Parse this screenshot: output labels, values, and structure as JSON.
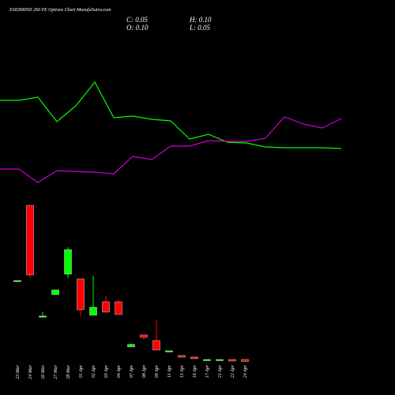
{
  "chart_data": {
    "type": "candlestick",
    "title": "ESIDMIND 260 PE Options Chart MunafaSutra.com",
    "info": {
      "close": "C: 0.05",
      "high": "H: 0.10",
      "open": "O: 0.10",
      "low": "L: 0.05"
    },
    "categories": [
      "23 Mar",
      "24 Mar",
      "26 Mar",
      "27 Mar",
      "28 Mar",
      "01 Apr",
      "02 Apr",
      "03 Apr",
      "04 Apr",
      "07 Apr",
      "08 Apr",
      "09 Apr",
      "11 Apr",
      "15 Apr",
      "16 Apr",
      "17 Apr",
      "21 Apr",
      "22 Apr",
      "24 Apr"
    ],
    "open": [
      2.1,
      4.0,
      1.2,
      1.74,
      2.26,
      2.14,
      1.22,
      1.56,
      1.56,
      0.42,
      0.72,
      0.58,
      0.32,
      0.2,
      0.16,
      0.1,
      0.1,
      0.1,
      0.1
    ],
    "high": [
      2.1,
      4.0,
      1.3,
      1.86,
      2.94,
      2.14,
      2.22,
      1.72,
      1.6,
      0.5,
      0.72,
      1.1,
      0.32,
      0.2,
      0.16,
      0.1,
      0.1,
      0.1,
      0.1
    ],
    "low": [
      2.1,
      2.16,
      1.18,
      1.74,
      2.16,
      1.18,
      1.22,
      1.3,
      1.24,
      0.42,
      0.6,
      0.34,
      0.32,
      0.16,
      0.12,
      0.1,
      0.1,
      0.06,
      0.05
    ],
    "close": [
      2.1,
      2.24,
      1.2,
      1.86,
      2.88,
      1.36,
      1.42,
      1.3,
      1.24,
      0.48,
      0.66,
      0.34,
      0.32,
      0.16,
      0.12,
      0.1,
      0.1,
      0.06,
      0.05
    ],
    "up_color": "#00ff00",
    "down_color": "#ff0000",
    "ylim": [
      0,
      4.4
    ],
    "series": [
      {
        "name": "green-line",
        "color": "#00ff00",
        "axis": "y2",
        "values": [
          2.46,
          2.46,
          2.54,
          1.92,
          2.32,
          2.92,
          2.02,
          2.06,
          1.98,
          1.94,
          1.48,
          1.6,
          1.4,
          1.38,
          1.28,
          1.26,
          1.26,
          1.26,
          1.24
        ]
      },
      {
        "name": "purple-line",
        "color": "#cc00cc",
        "axis": "y2",
        "values": [
          0.72,
          0.72,
          0.38,
          0.68,
          0.66,
          0.64,
          0.6,
          1.04,
          0.96,
          1.3,
          1.3,
          1.44,
          1.42,
          1.42,
          1.5,
          2.04,
          1.86,
          1.76,
          2.0
        ]
      }
    ],
    "y2lim": [
      0,
      3
    ]
  }
}
